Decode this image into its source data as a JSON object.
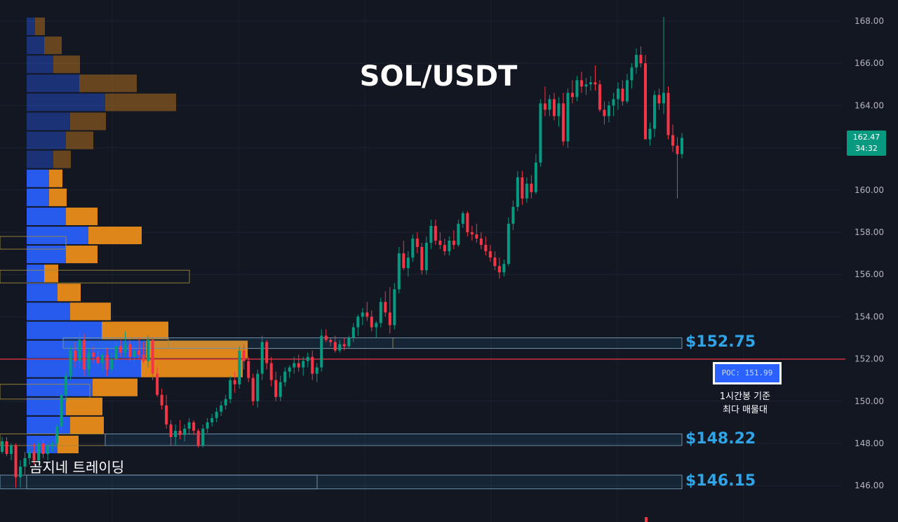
{
  "chart_data": {
    "type": "candlestick",
    "title": "SOL/USDT",
    "y_axis": {
      "ticks": [
        "168.00",
        "166.00",
        "164.00",
        "162.00",
        "160.00",
        "158.00",
        "156.00",
        "154.00",
        "152.00",
        "150.00",
        "148.00",
        "146.00"
      ],
      "ylim": [
        145.2,
        168.8
      ],
      "side": "right"
    },
    "current_price": {
      "value": "162.47",
      "countdown": "34:32",
      "color": "#089981"
    },
    "poc": {
      "label": "POC: 151.99",
      "value": 151.99,
      "line_color": "#f23645"
    },
    "levels": [
      {
        "label": "$152.75",
        "low": 152.5,
        "high": 153.0
      },
      {
        "label": "$148.22",
        "low": 147.9,
        "high": 148.45
      },
      {
        "label": "$146.15",
        "low": 145.85,
        "high": 146.5
      }
    ],
    "note_lines": [
      "1시간봉 기준",
      "최다 매물대"
    ],
    "watermark": "곰지네 트레이딩",
    "colors": {
      "up": "#089981",
      "down": "#f23645",
      "vp_up": "#2962ff",
      "vp_down": "#f0901a",
      "level": "#2fa4e7"
    },
    "volume_profile": [
      {
        "price_high": 168.2,
        "price_low": 167.3,
        "up": 12,
        "down": 14,
        "active": false
      },
      {
        "price_high": 167.3,
        "price_low": 166.4,
        "up": 25,
        "down": 25,
        "active": false
      },
      {
        "price_high": 166.4,
        "price_low": 165.5,
        "up": 38,
        "down": 38,
        "active": false
      },
      {
        "price_high": 165.5,
        "price_low": 164.6,
        "up": 75,
        "down": 82,
        "active": false
      },
      {
        "price_high": 164.6,
        "price_low": 163.7,
        "up": 112,
        "down": 101,
        "active": false
      },
      {
        "price_high": 163.7,
        "price_low": 162.8,
        "up": 62,
        "down": 51,
        "active": false
      },
      {
        "price_high": 162.8,
        "price_low": 161.9,
        "up": 56,
        "down": 39,
        "active": false
      },
      {
        "price_high": 161.9,
        "price_low": 161.0,
        "up": 38,
        "down": 25,
        "active": false
      },
      {
        "price_high": 161.0,
        "price_low": 160.1,
        "up": 32,
        "down": 19,
        "active": true
      },
      {
        "price_high": 160.1,
        "price_low": 159.2,
        "up": 32,
        "down": 25,
        "active": true
      },
      {
        "price_high": 159.2,
        "price_low": 158.3,
        "up": 56,
        "down": 45,
        "active": true
      },
      {
        "price_high": 158.3,
        "price_low": 157.4,
        "up": 88,
        "down": 76,
        "active": true
      },
      {
        "price_high": 157.4,
        "price_low": 156.5,
        "up": 56,
        "down": 45,
        "active": true
      },
      {
        "price_high": 156.5,
        "price_low": 155.6,
        "up": 25,
        "down": 20,
        "active": true
      },
      {
        "price_high": 155.6,
        "price_low": 154.7,
        "up": 44,
        "down": 33,
        "active": true
      },
      {
        "price_high": 154.7,
        "price_low": 153.8,
        "up": 62,
        "down": 58,
        "active": true
      },
      {
        "price_high": 153.8,
        "price_low": 152.9,
        "up": 107,
        "down": 95,
        "active": true
      },
      {
        "price_high": 152.9,
        "price_low": 152.0,
        "up": 170,
        "down": 145,
        "active": true
      },
      {
        "price_high": 152.0,
        "price_low": 151.1,
        "up": 163,
        "down": 145,
        "active": true
      },
      {
        "price_high": 151.1,
        "price_low": 150.2,
        "up": 94,
        "down": 64,
        "active": true
      },
      {
        "price_high": 150.2,
        "price_low": 149.3,
        "up": 56,
        "down": 52,
        "active": true
      },
      {
        "price_high": 149.3,
        "price_low": 148.4,
        "up": 62,
        "down": 48,
        "active": true
      },
      {
        "price_high": 148.4,
        "price_low": 147.5,
        "up": 44,
        "down": 30,
        "active": true
      }
    ],
    "candles": [
      [
        147.6,
        148.3,
        147.5,
        148.1
      ],
      [
        148.1,
        148.3,
        147.4,
        147.5
      ],
      [
        147.5,
        148.0,
        147.2,
        147.9
      ],
      [
        147.9,
        148.0,
        146.1,
        146.4
      ],
      [
        146.4,
        147.2,
        145.9,
        146.9
      ],
      [
        146.9,
        147.6,
        146.5,
        147.3
      ],
      [
        147.3,
        147.8,
        147.0,
        147.6
      ],
      [
        147.6,
        148.0,
        147.0,
        147.2
      ],
      [
        147.2,
        148.1,
        147.1,
        148.0
      ],
      [
        148.0,
        148.2,
        147.3,
        147.5
      ],
      [
        147.5,
        148.0,
        147.2,
        147.9
      ],
      [
        147.9,
        148.1,
        147.6,
        148.0
      ],
      [
        148.0,
        148.9,
        147.8,
        148.8
      ],
      [
        148.8,
        150.5,
        148.6,
        150.3
      ],
      [
        150.3,
        151.4,
        150.0,
        151.2
      ],
      [
        151.2,
        152.6,
        151.0,
        152.4
      ],
      [
        152.4,
        152.8,
        151.6,
        151.9
      ],
      [
        151.9,
        153.2,
        151.6,
        152.9
      ],
      [
        152.9,
        153.2,
        151.2,
        151.5
      ],
      [
        151.5,
        152.5,
        151.2,
        152.3
      ],
      [
        152.3,
        152.6,
        151.8,
        152.1
      ],
      [
        152.1,
        152.4,
        151.7,
        151.8
      ],
      [
        151.8,
        152.3,
        151.4,
        152.2
      ],
      [
        152.2,
        152.5,
        151.2,
        151.5
      ],
      [
        151.5,
        152.3,
        151.3,
        152.0
      ],
      [
        152.0,
        152.8,
        151.9,
        152.6
      ],
      [
        152.6,
        152.9,
        152.1,
        152.3
      ],
      [
        152.3,
        153.3,
        152.1,
        152.7
      ],
      [
        152.7,
        152.9,
        151.9,
        152.1
      ],
      [
        152.1,
        152.7,
        151.8,
        152.4
      ],
      [
        152.4,
        153.0,
        152.0,
        152.2
      ],
      [
        152.2,
        152.8,
        151.8,
        151.9
      ],
      [
        151.9,
        153.1,
        151.6,
        152.9
      ],
      [
        152.9,
        153.0,
        151.0,
        151.3
      ],
      [
        151.3,
        151.6,
        150.2,
        150.3
      ],
      [
        150.3,
        150.6,
        149.6,
        149.8
      ],
      [
        149.8,
        150.3,
        148.7,
        148.9
      ],
      [
        148.9,
        149.1,
        147.9,
        148.3
      ],
      [
        148.3,
        148.9,
        147.9,
        148.6
      ],
      [
        148.6,
        149.1,
        148.2,
        148.4
      ],
      [
        148.4,
        148.9,
        148.1,
        148.7
      ],
      [
        148.7,
        149.2,
        148.4,
        149.0
      ],
      [
        149.0,
        149.1,
        148.4,
        148.6
      ],
      [
        148.6,
        148.7,
        147.8,
        147.9
      ],
      [
        147.9,
        148.9,
        147.8,
        148.7
      ],
      [
        148.7,
        149.2,
        148.5,
        149.0
      ],
      [
        149.0,
        149.4,
        148.8,
        149.2
      ],
      [
        149.2,
        149.7,
        149.0,
        149.5
      ],
      [
        149.5,
        150.0,
        149.3,
        149.8
      ],
      [
        149.8,
        150.3,
        149.6,
        150.1
      ],
      [
        150.1,
        151.2,
        149.9,
        151.0
      ],
      [
        151.0,
        151.4,
        150.4,
        150.8
      ],
      [
        150.8,
        152.6,
        150.6,
        152.4
      ],
      [
        152.4,
        152.7,
        151.5,
        151.9
      ],
      [
        151.9,
        152.1,
        150.9,
        151.1
      ],
      [
        151.1,
        151.3,
        149.8,
        150.0
      ],
      [
        150.0,
        151.5,
        149.7,
        151.3
      ],
      [
        151.3,
        153.1,
        151.0,
        152.8
      ],
      [
        152.8,
        152.9,
        151.5,
        151.8
      ],
      [
        151.8,
        152.1,
        150.7,
        151.0
      ],
      [
        151.0,
        151.4,
        150.0,
        150.2
      ],
      [
        150.2,
        151.2,
        150.0,
        150.9
      ],
      [
        150.9,
        151.6,
        150.7,
        151.4
      ],
      [
        151.4,
        151.7,
        151.1,
        151.6
      ],
      [
        151.6,
        152.1,
        151.3,
        151.8
      ],
      [
        151.8,
        152.2,
        151.4,
        151.6
      ],
      [
        151.6,
        152.1,
        151.2,
        151.9
      ],
      [
        151.9,
        152.3,
        151.6,
        152.1
      ],
      [
        152.1,
        152.4,
        151.0,
        151.3
      ],
      [
        151.3,
        151.8,
        150.9,
        151.6
      ],
      [
        151.6,
        153.4,
        151.4,
        153.1
      ],
      [
        153.1,
        153.4,
        152.8,
        152.9
      ],
      [
        152.9,
        153.0,
        152.6,
        152.8
      ],
      [
        152.8,
        153.1,
        152.3,
        152.4
      ],
      [
        152.4,
        152.9,
        152.3,
        152.7
      ],
      [
        152.7,
        153.0,
        152.4,
        152.6
      ],
      [
        152.6,
        153.1,
        152.5,
        153.0
      ],
      [
        153.0,
        153.7,
        152.8,
        153.5
      ],
      [
        153.5,
        154.1,
        153.1,
        154.0
      ],
      [
        154.0,
        154.4,
        153.6,
        154.2
      ],
      [
        154.2,
        154.7,
        153.8,
        154.0
      ],
      [
        154.0,
        154.3,
        153.3,
        153.5
      ],
      [
        153.5,
        153.8,
        153.0,
        153.7
      ],
      [
        153.7,
        154.9,
        153.5,
        154.7
      ],
      [
        154.7,
        155.2,
        154.0,
        154.2
      ],
      [
        154.2,
        155.4,
        153.2,
        153.6
      ],
      [
        153.6,
        155.6,
        153.4,
        155.3
      ],
      [
        155.3,
        157.3,
        155.1,
        157.0
      ],
      [
        157.0,
        157.6,
        156.2,
        156.3
      ],
      [
        156.3,
        157.1,
        155.9,
        156.8
      ],
      [
        156.8,
        157.9,
        156.6,
        157.7
      ],
      [
        157.7,
        158.0,
        157.0,
        157.3
      ],
      [
        157.3,
        157.5,
        156.0,
        156.2
      ],
      [
        156.2,
        157.8,
        156.0,
        157.5
      ],
      [
        157.5,
        158.6,
        157.2,
        158.3
      ],
      [
        158.3,
        158.6,
        157.4,
        157.6
      ],
      [
        157.6,
        158.0,
        157.2,
        157.4
      ],
      [
        157.4,
        157.7,
        156.9,
        157.1
      ],
      [
        157.1,
        157.8,
        156.9,
        157.6
      ],
      [
        157.6,
        158.1,
        157.2,
        157.4
      ],
      [
        157.4,
        158.6,
        157.3,
        158.4
      ],
      [
        158.4,
        159.0,
        158.2,
        158.9
      ],
      [
        158.9,
        159.0,
        157.8,
        158.0
      ],
      [
        158.0,
        158.3,
        157.6,
        157.9
      ],
      [
        157.9,
        158.4,
        157.5,
        157.7
      ],
      [
        157.7,
        158.0,
        157.2,
        157.4
      ],
      [
        157.4,
        157.8,
        156.9,
        157.1
      ],
      [
        157.1,
        157.4,
        156.6,
        156.8
      ],
      [
        156.8,
        157.1,
        156.2,
        156.4
      ],
      [
        156.4,
        156.8,
        155.8,
        156.1
      ],
      [
        156.1,
        156.7,
        155.9,
        156.5
      ],
      [
        156.5,
        158.7,
        156.4,
        158.4
      ],
      [
        158.4,
        159.5,
        158.1,
        159.2
      ],
      [
        159.2,
        160.9,
        159.0,
        160.6
      ],
      [
        160.6,
        160.9,
        159.3,
        159.6
      ],
      [
        159.6,
        160.6,
        159.4,
        160.3
      ],
      [
        160.3,
        160.7,
        159.6,
        159.9
      ],
      [
        159.9,
        161.7,
        159.8,
        161.3
      ],
      [
        161.3,
        164.3,
        161.1,
        164.1
      ],
      [
        164.1,
        164.9,
        163.5,
        163.8
      ],
      [
        163.8,
        164.5,
        163.5,
        164.3
      ],
      [
        164.3,
        164.6,
        163.3,
        163.5
      ],
      [
        163.5,
        164.4,
        163.0,
        164.1
      ],
      [
        164.1,
        164.6,
        162.1,
        162.3
      ],
      [
        162.3,
        164.8,
        162.0,
        164.6
      ],
      [
        164.6,
        165.2,
        164.1,
        164.4
      ],
      [
        164.4,
        165.4,
        164.2,
        165.2
      ],
      [
        165.2,
        165.6,
        164.6,
        164.9
      ],
      [
        164.9,
        165.3,
        164.5,
        165.0
      ],
      [
        165.0,
        165.4,
        164.7,
        165.1
      ],
      [
        165.1,
        165.9,
        164.7,
        165.0
      ],
      [
        165.0,
        165.2,
        163.7,
        163.8
      ],
      [
        163.8,
        164.2,
        163.1,
        163.5
      ],
      [
        163.5,
        164.2,
        163.2,
        164.0
      ],
      [
        164.0,
        164.6,
        163.5,
        164.3
      ],
      [
        164.3,
        165.1,
        163.8,
        164.8
      ],
      [
        164.8,
        165.2,
        164.0,
        164.2
      ],
      [
        164.2,
        165.5,
        164.1,
        165.2
      ],
      [
        165.2,
        166.0,
        164.8,
        165.8
      ],
      [
        165.8,
        166.7,
        165.5,
        166.4
      ],
      [
        166.4,
        166.8,
        165.8,
        166.0
      ],
      [
        166.0,
        166.4,
        162.5,
        162.4
      ],
      [
        162.4,
        163.2,
        162.1,
        162.9
      ],
      [
        162.9,
        164.7,
        162.5,
        164.5
      ],
      [
        164.5,
        164.8,
        163.8,
        164.1
      ],
      [
        164.1,
        164.8,
        163.6,
        164.6
      ],
      [
        164.6,
        164.9,
        162.4,
        162.6
      ],
      [
        162.6,
        163.1,
        161.8,
        162.1
      ],
      [
        162.1,
        162.5,
        159.6,
        161.7
      ],
      [
        161.7,
        162.7,
        161.5,
        162.47
      ]
    ],
    "extra_wicks": [
      {
        "index": 3,
        "price_low": 145.9
      },
      {
        "index": 145,
        "price_high": 168.2
      }
    ],
    "bottom_partial_candle": {
      "direction": "down"
    }
  },
  "ui": {
    "top_hint": ""
  }
}
